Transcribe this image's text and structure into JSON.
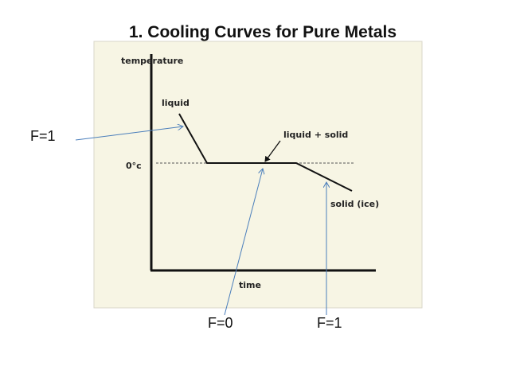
{
  "title": "1. Cooling Curves for Pure Metals",
  "diagram": {
    "y_axis_label": "temperature",
    "x_axis_label": "time",
    "regions": [
      "liquid",
      "liquid + solid",
      "solid (ice)"
    ],
    "reference_label": "0°c"
  },
  "annotations": [
    "F=1",
    "F=0",
    "F=1"
  ]
}
